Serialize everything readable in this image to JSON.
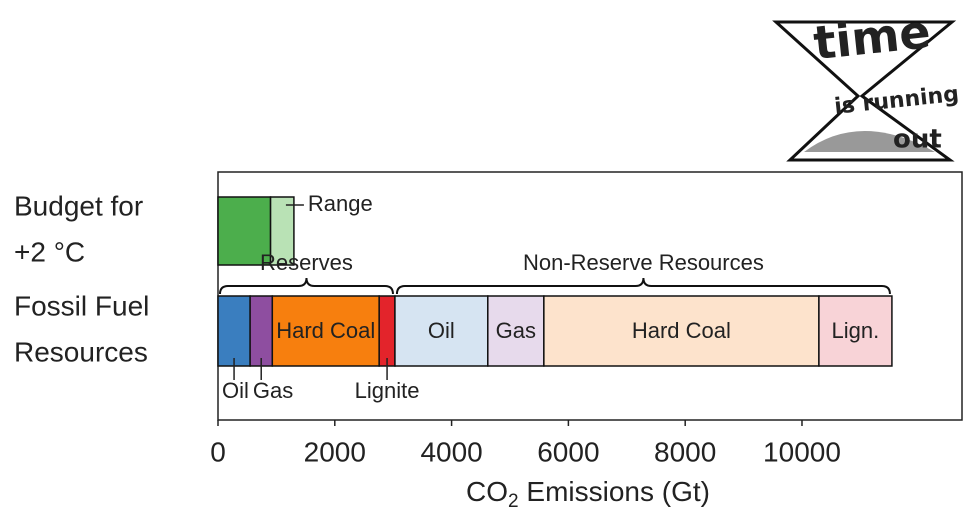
{
  "chart_data": {
    "type": "stacked-bar",
    "logo": {
      "line1": "time",
      "line2": "is running",
      "line3": "out"
    },
    "x_label": {
      "pre": "CO",
      "sub": "2",
      "post": " Emissions (Gt)"
    },
    "xlim": [
      0,
      12740
    ],
    "xticks": [
      0,
      2000,
      4000,
      6000,
      8000,
      10000
    ],
    "bars": [
      {
        "label": [
          "Budget for",
          "+2 °C"
        ],
        "groups": [
          {
            "segments": [
              {
                "value": 900,
                "color": "#4cae4c"
              },
              {
                "name": "Range",
                "value": 400,
                "color": "#b9e2b5"
              }
            ]
          }
        ]
      },
      {
        "label": [
          "Fossil Fuel",
          "Resources"
        ],
        "groups": [
          {
            "name": "Reserves",
            "segments": [
              {
                "name": "Oil",
                "value": 550,
                "color": "#3a7ebf"
              },
              {
                "name": "Gas",
                "value": 380,
                "color": "#8e4ea0"
              },
              {
                "name": "Hard Coal",
                "value": 1830,
                "color": "#f77f0e"
              },
              {
                "name": "Lignite",
                "value": 270,
                "color": "#e3242b"
              }
            ]
          },
          {
            "name": "Non-Reserve Resources",
            "segments": [
              {
                "name": "Oil",
                "value": 1590,
                "color": "#d6e4f2"
              },
              {
                "name": "Gas",
                "value": 960,
                "color": "#e7daec"
              },
              {
                "name": "Hard Coal",
                "value": 4710,
                "color": "#fde3cc"
              },
              {
                "name": "Lign.",
                "value": 1250,
                "color": "#f8d3d7"
              }
            ]
          }
        ]
      }
    ]
  }
}
